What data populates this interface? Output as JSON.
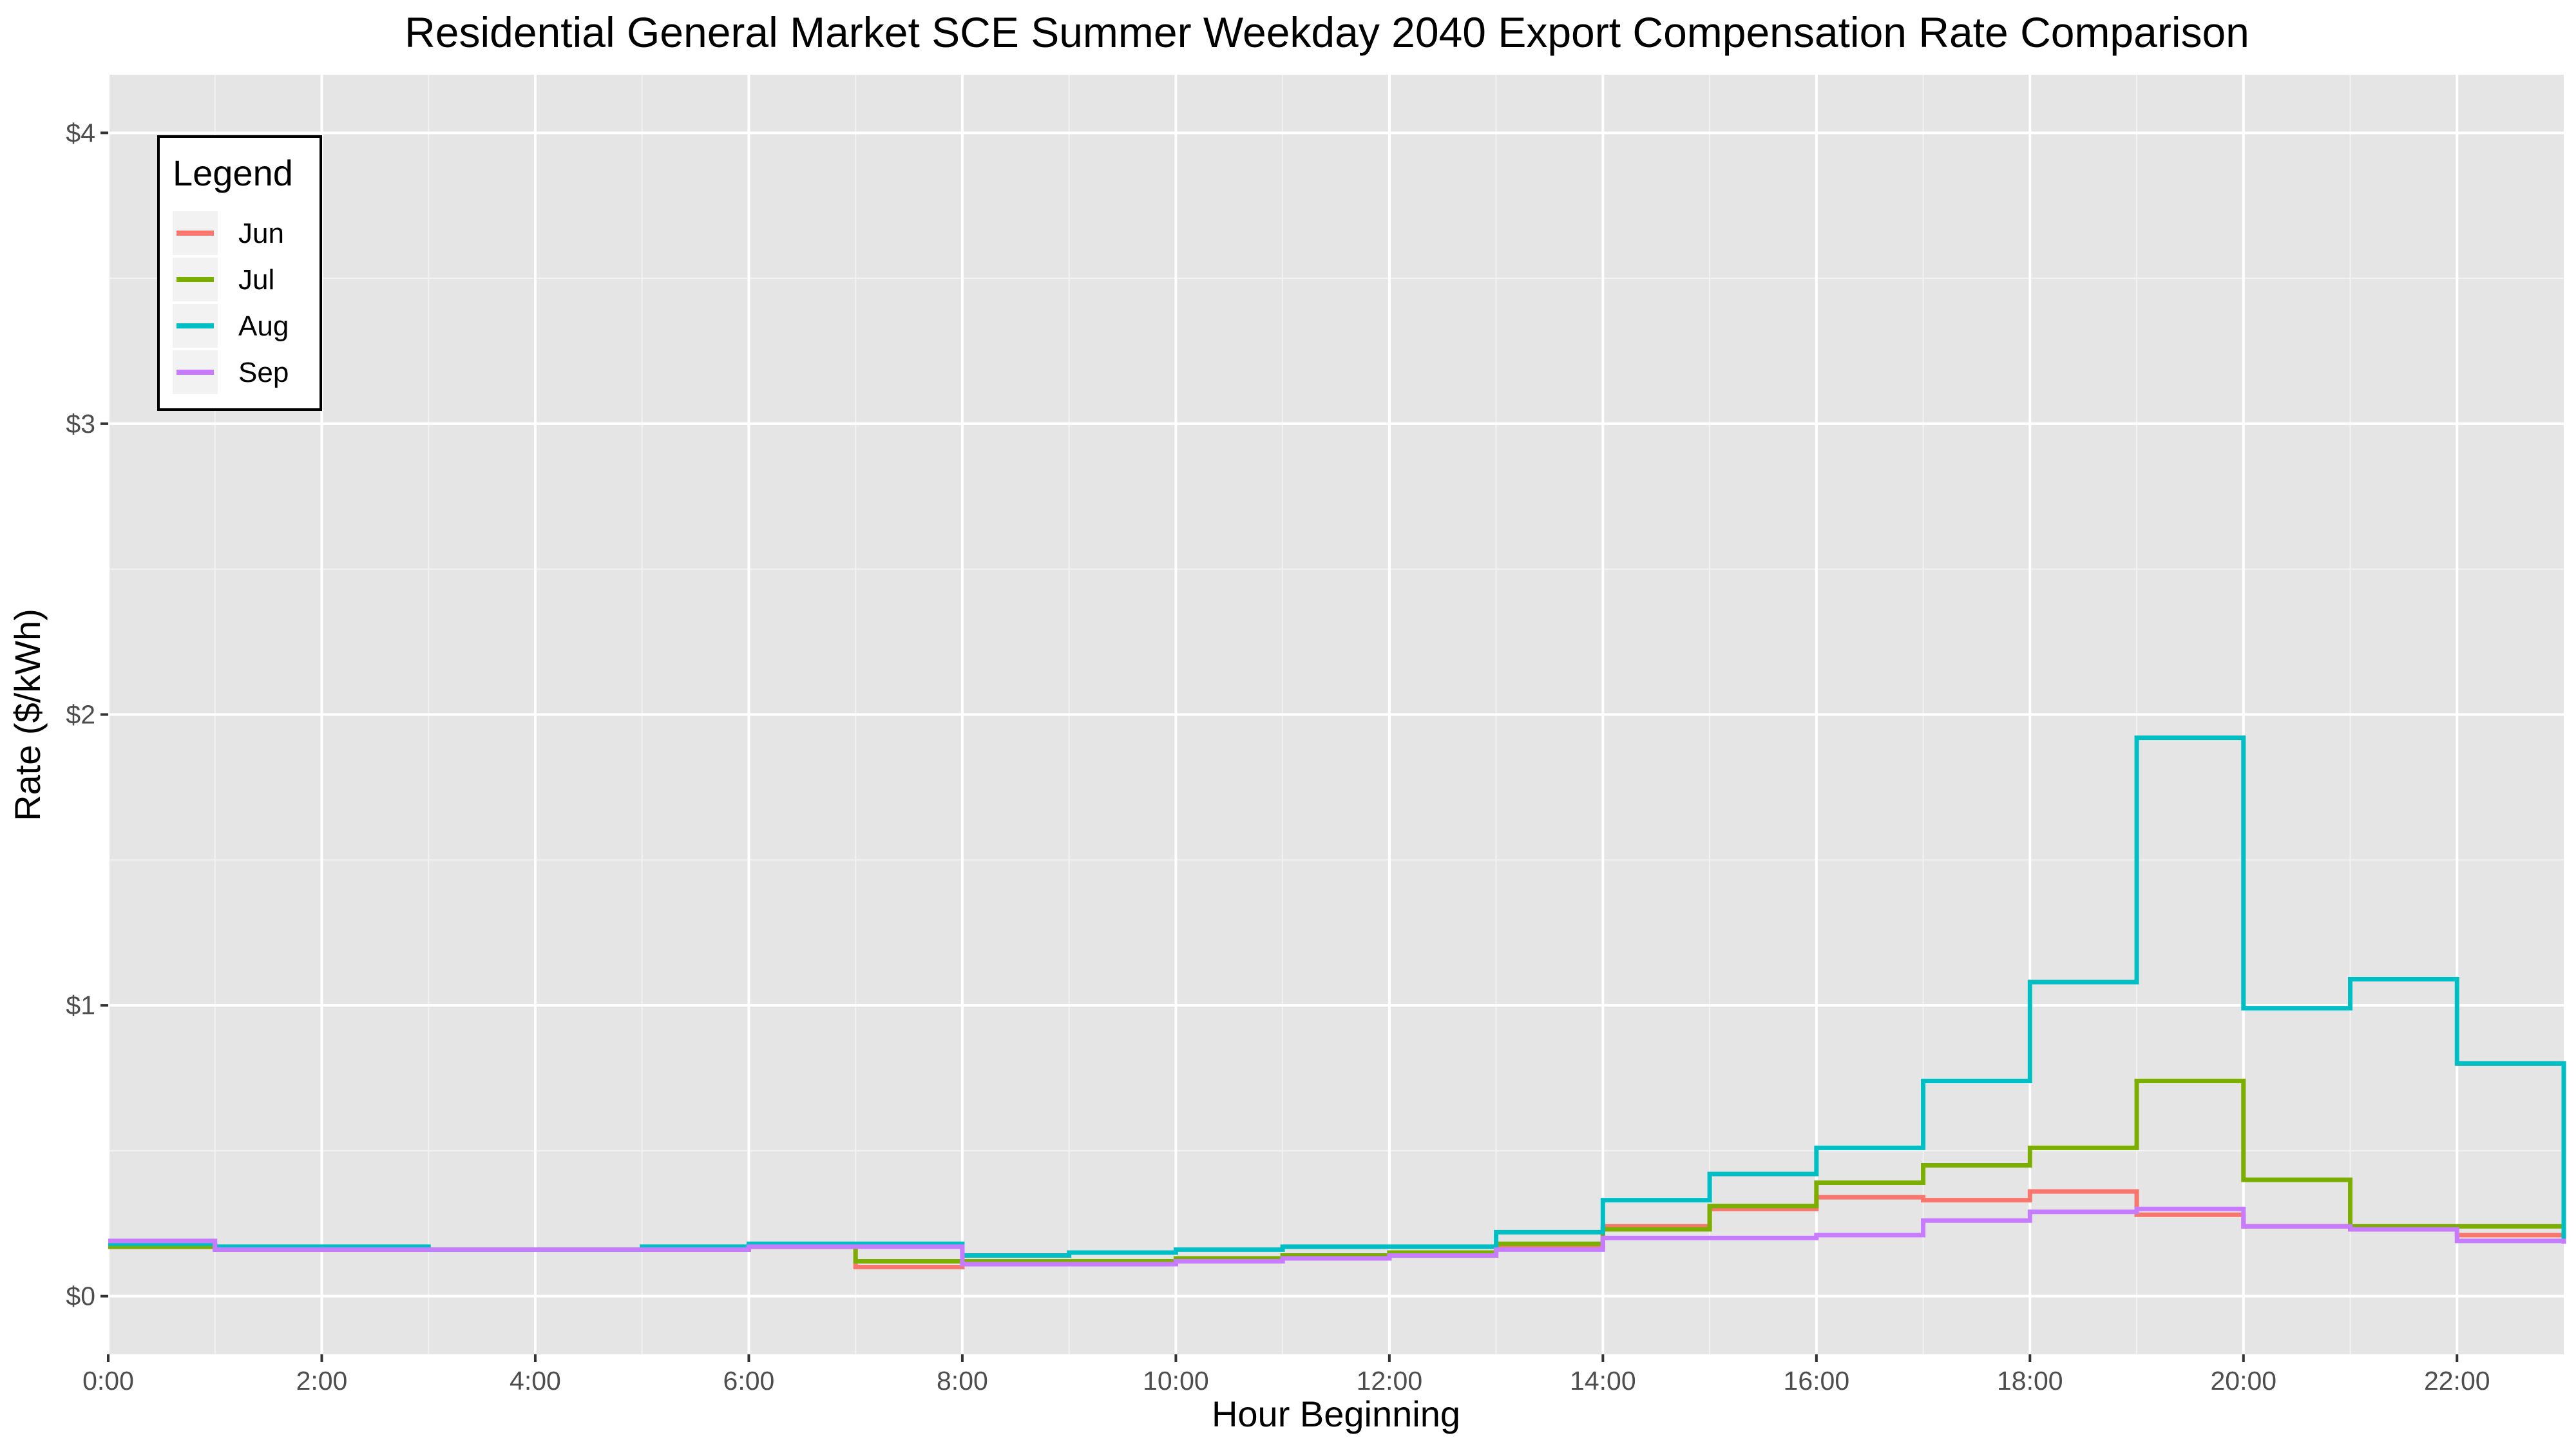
{
  "chart_data": {
    "type": "line",
    "step": true,
    "title": "Residential General Market SCE Summer Weekday 2040 Export Compensation Rate Comparison",
    "xlabel": "Hour Beginning",
    "ylabel": "Rate ($/kWh)",
    "x": [
      0,
      1,
      2,
      3,
      4,
      5,
      6,
      7,
      8,
      9,
      10,
      11,
      12,
      13,
      14,
      15,
      16,
      17,
      18,
      19,
      20,
      21,
      22,
      23
    ],
    "xlim": [
      0,
      23
    ],
    "ylim": [
      -0.2,
      4.2
    ],
    "x_ticks": [
      0,
      2,
      4,
      6,
      8,
      10,
      12,
      14,
      16,
      18,
      20,
      22
    ],
    "x_tick_labels": [
      "0:00",
      "2:00",
      "4:00",
      "6:00",
      "8:00",
      "10:00",
      "12:00",
      "14:00",
      "16:00",
      "18:00",
      "20:00",
      "22:00"
    ],
    "y_ticks": [
      0,
      1,
      2,
      3,
      4
    ],
    "y_tick_labels": [
      "$0",
      "$1",
      "$2",
      "$3",
      "$4"
    ],
    "grid": true,
    "legend": {
      "title": "Legend",
      "position": "top-left"
    },
    "series": [
      {
        "name": "Jun",
        "color": "#F8766D",
        "values": [
          0.17,
          0.16,
          0.16,
          0.16,
          0.16,
          0.16,
          0.17,
          0.1,
          0.11,
          0.11,
          0.12,
          0.13,
          0.14,
          0.17,
          0.24,
          0.3,
          0.34,
          0.33,
          0.36,
          0.28,
          0.24,
          0.23,
          0.21,
          0.19
        ]
      },
      {
        "name": "Jul",
        "color": "#7CAE00",
        "values": [
          0.17,
          0.16,
          0.16,
          0.16,
          0.16,
          0.16,
          0.17,
          0.12,
          0.12,
          0.12,
          0.13,
          0.14,
          0.15,
          0.18,
          0.23,
          0.31,
          0.39,
          0.45,
          0.51,
          0.74,
          0.4,
          0.24,
          0.24,
          0.24
        ]
      },
      {
        "name": "Aug",
        "color": "#00BFC4",
        "values": [
          0.18,
          0.17,
          0.17,
          0.16,
          0.16,
          0.17,
          0.18,
          0.18,
          0.14,
          0.15,
          0.16,
          0.17,
          0.17,
          0.22,
          0.33,
          0.42,
          0.51,
          0.74,
          1.08,
          1.92,
          0.99,
          1.09,
          0.8,
          0.19
        ]
      },
      {
        "name": "Sep",
        "color": "#C77CFF",
        "values": [
          0.19,
          0.16,
          0.16,
          0.16,
          0.16,
          0.16,
          0.17,
          0.17,
          0.11,
          0.11,
          0.12,
          0.13,
          0.14,
          0.16,
          0.2,
          0.2,
          0.21,
          0.26,
          0.29,
          0.3,
          0.24,
          0.23,
          0.19,
          0.18
        ]
      }
    ]
  }
}
